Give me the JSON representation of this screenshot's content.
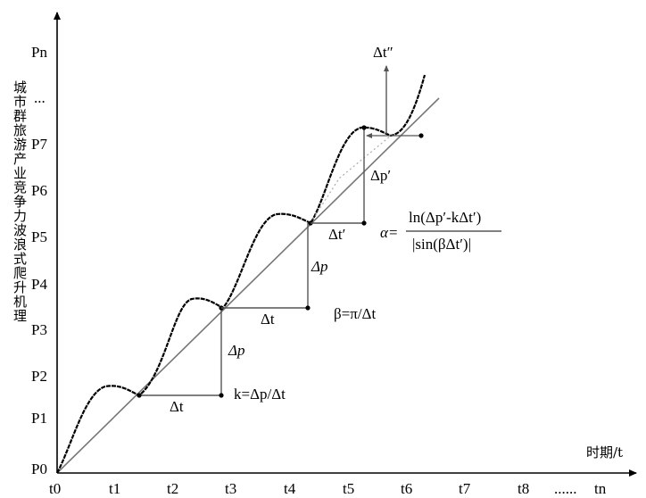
{
  "axes": {
    "y_label": "城市群旅游产业竞争力波浪式爬升机理",
    "x_label": "时期/t",
    "y_ticks": [
      "P0",
      "P1",
      "P2",
      "P3",
      "P4",
      "P5",
      "P6",
      "P7",
      "...",
      "Pn"
    ],
    "x_ticks": [
      "t0",
      "t1",
      "t2",
      "t3",
      "t4",
      "t5",
      "t6",
      "t7",
      "t8",
      "......",
      "tn"
    ]
  },
  "annotations": {
    "delta_t": "Δt",
    "delta_p": "Δp",
    "delta_t_prime": "Δt′",
    "delta_p_prime": "Δp′",
    "delta_t_double_prime": "Δt″",
    "k_formula": "k=Δp/Δt",
    "beta_formula": "β=π/Δt",
    "alpha_lhs": "α=",
    "alpha_numerator": "ln(Δp′-kΔt′)",
    "alpha_denominator": "|sin(βΔt′)|"
  },
  "colors": {
    "axis": "#000000",
    "trend_line": "#777777",
    "wave_curve": "#000000",
    "step_lines": "#555555",
    "dotted_chord": "#aaaaaa"
  }
}
